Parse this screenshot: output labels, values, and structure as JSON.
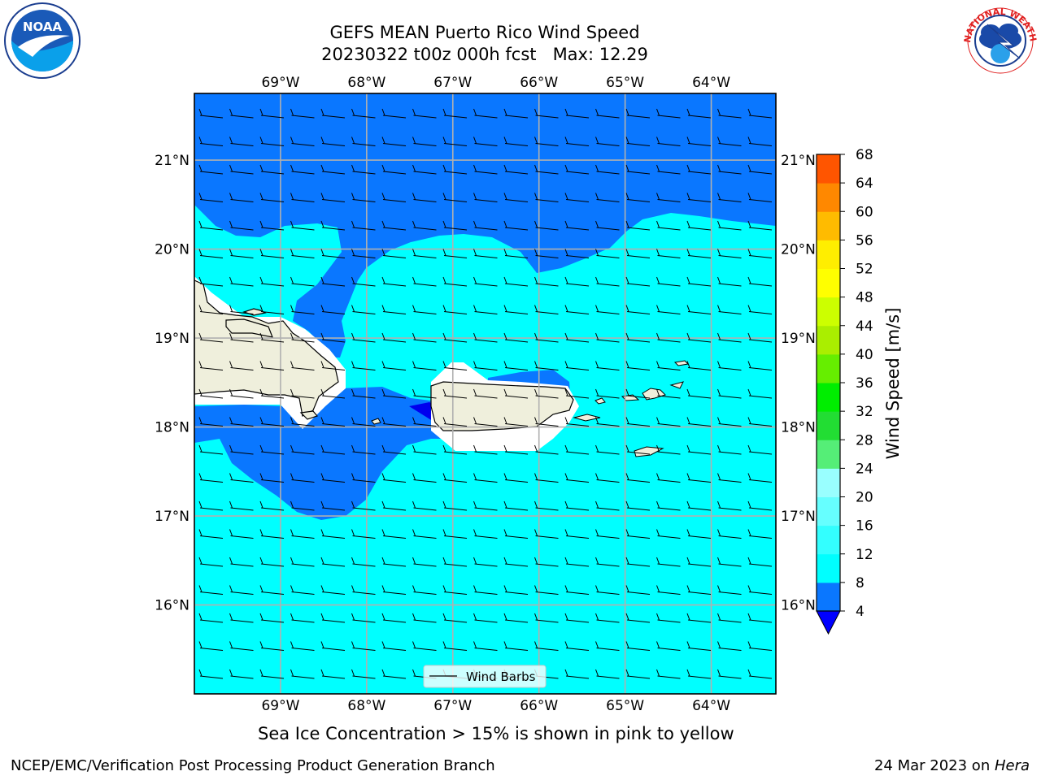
{
  "title": "GEFS MEAN Puerto Rico Wind Speed",
  "subtitle_run": "20230322 t00z 000h fcst",
  "subtitle_max": "Max: 12.29",
  "lon_labels": [
    "69°W",
    "68°W",
    "67°W",
    "66°W",
    "65°W",
    "64°W"
  ],
  "lat_labels": [
    "21°N",
    "20°N",
    "19°N",
    "18°N",
    "17°N",
    "16°N"
  ],
  "lon_values": [
    -69,
    -68,
    -67,
    -66,
    -65,
    -64
  ],
  "lat_values": [
    21,
    20,
    19,
    18,
    17,
    16
  ],
  "extent": {
    "lon_min": -70.0,
    "lon_max": -63.25,
    "lat_min": 15.0,
    "lat_max": 21.75
  },
  "legend_label": "Wind Barbs",
  "colorbar": {
    "label": "Wind Speed [m/s]",
    "ticks": [
      "4",
      "8",
      "12",
      "16",
      "20",
      "24",
      "28",
      "32",
      "36",
      "40",
      "44",
      "48",
      "52",
      "56",
      "60",
      "64",
      "68"
    ],
    "colors": [
      "#0a77ff",
      "#00ffff",
      "#33ffff",
      "#66ffff",
      "#99ffff",
      "#55ee77",
      "#22dd33",
      "#00ee00",
      "#66ee00",
      "#aaee00",
      "#ccff00",
      "#ffff00",
      "#ffee00",
      "#ffbb00",
      "#ff8800",
      "#ff5500",
      "#ff2200",
      "#ff0000"
    ],
    "under_color": "#0000ff"
  },
  "ocean_colors": {
    "band_4_8": "#0a77ff",
    "band_8_12": "#00ffff",
    "below_4": "#0000ee",
    "land": "#efefdc"
  },
  "sea_ice_note": "Sea Ice Concentration > 15% is shown in pink to yellow",
  "footer_left": "NCEP/EMC/Verification Post Processing Product Generation Branch",
  "footer_date": "24 Mar 2023 on ",
  "footer_host": "Hera",
  "logos": {
    "noaa": "NOAA",
    "nws": "NATIONAL WEATHER SERVICE"
  }
}
